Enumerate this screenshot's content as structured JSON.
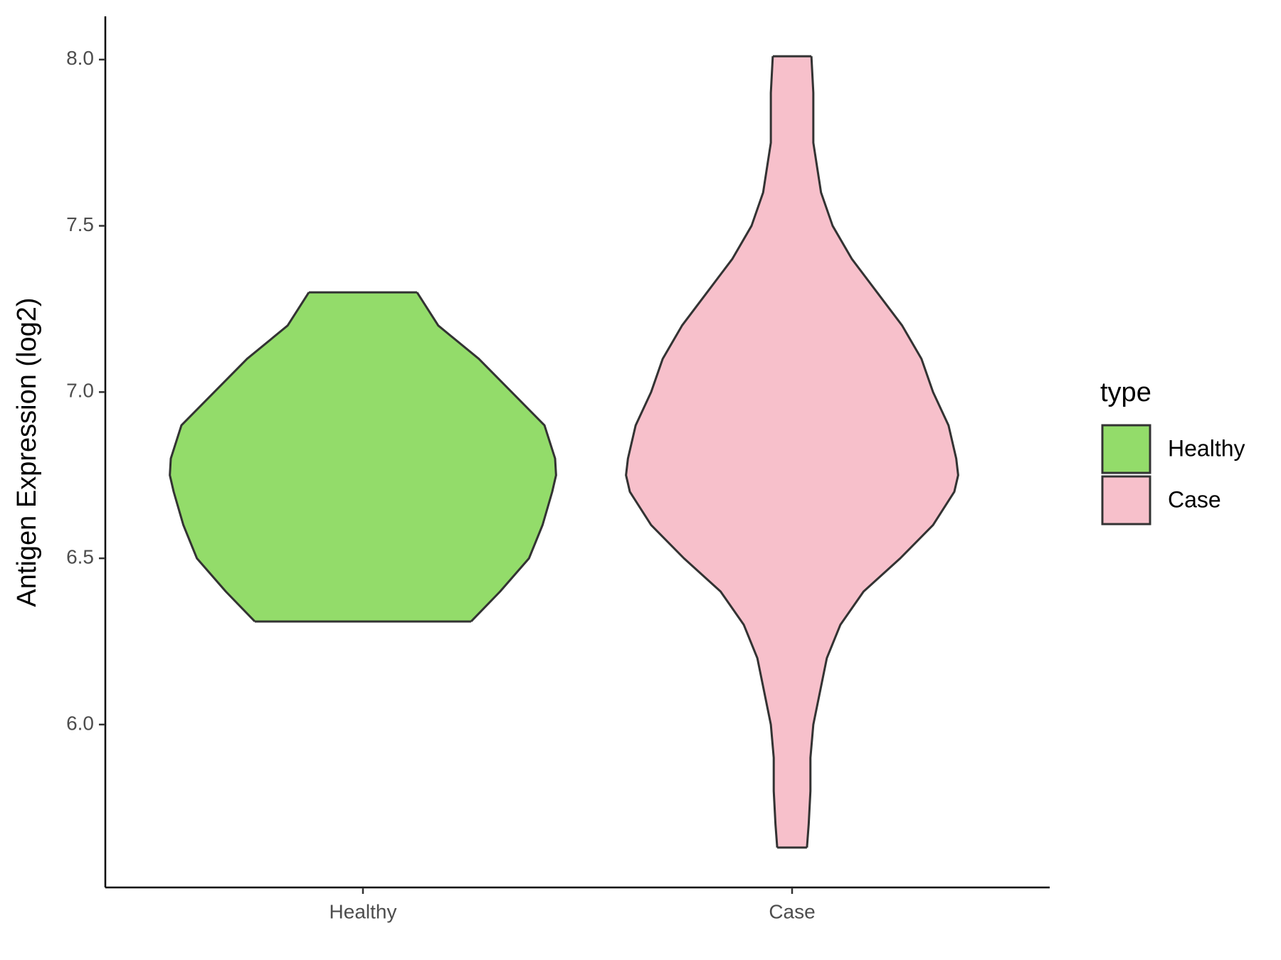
{
  "chart_data": {
    "type": "violin",
    "y_label": "Antigen Expression (log2)",
    "categories": [
      "Healthy",
      "Case"
    ],
    "legend_title": "type",
    "legend_position": "right",
    "grid": false,
    "ylim": [
      5.51,
      8.13
    ],
    "yticks": [
      {
        "value": 6,
        "label": "6.0"
      },
      {
        "value": 6.5,
        "label": "6.5"
      },
      {
        "value": 7,
        "label": "7.0"
      },
      {
        "value": 7.5,
        "label": "7.5"
      },
      {
        "value": 8,
        "label": "8.0"
      }
    ],
    "series": [
      {
        "name": "Healthy",
        "color": "#93dc6a",
        "y": [
          7.3,
          7.2,
          7.1,
          7.0,
          6.9,
          6.8,
          6.75,
          6.7,
          6.6,
          6.5,
          6.4,
          6.31
        ],
        "density": [
          0.28,
          0.39,
          0.6,
          0.77,
          0.94,
          0.995,
          1.0,
          0.98,
          0.93,
          0.86,
          0.71,
          0.56
        ]
      },
      {
        "name": "Case",
        "color": "#f7c0cb",
        "y": [
          8.01,
          7.9,
          7.75,
          7.6,
          7.5,
          7.4,
          7.3,
          7.2,
          7.1,
          7.0,
          6.9,
          6.8,
          6.75,
          6.7,
          6.6,
          6.5,
          6.4,
          6.3,
          6.2,
          6.0,
          5.9,
          5.8,
          5.7,
          5.63
        ],
        "density": [
          0.1,
          0.11,
          0.11,
          0.15,
          0.21,
          0.31,
          0.44,
          0.57,
          0.67,
          0.73,
          0.81,
          0.85,
          0.86,
          0.84,
          0.73,
          0.56,
          0.37,
          0.25,
          0.18,
          0.11,
          0.095,
          0.095,
          0.086,
          0.077
        ]
      }
    ]
  }
}
